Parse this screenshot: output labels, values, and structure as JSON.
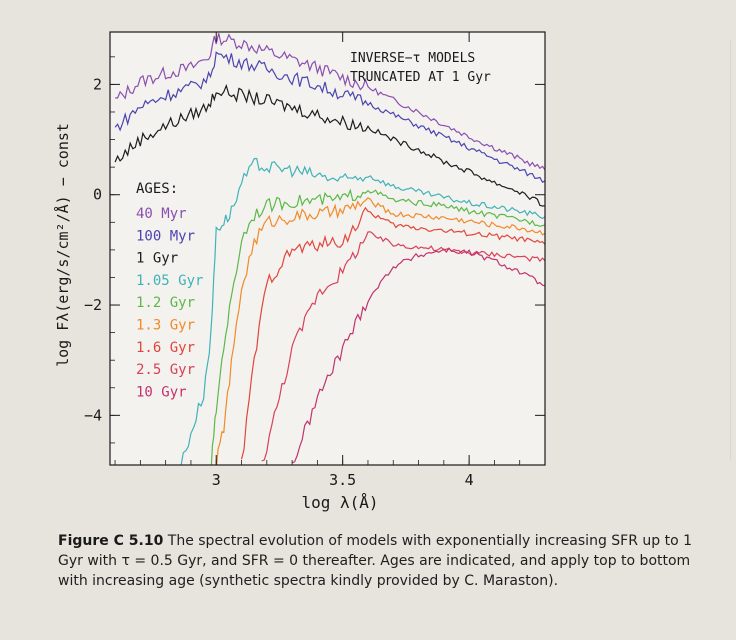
{
  "chart_data": {
    "type": "line",
    "title": "INVERSE−τ MODELS",
    "subtitle": "TRUNCATED AT 1 Gyr",
    "xlabel": "log λ(Å)",
    "ylabel": "log Fλ(erg/s/cm²/Å) − const",
    "xlim": [
      2.58,
      4.3
    ],
    "ylim": [
      -4.9,
      2.95
    ],
    "x_ticks": [
      {
        "value": 3,
        "label": "3"
      },
      {
        "value": 3.5,
        "label": "3.5"
      },
      {
        "value": 4,
        "label": "4"
      }
    ],
    "y_ticks": [
      {
        "value": 2,
        "label": "2"
      },
      {
        "value": 0,
        "label": "0"
      },
      {
        "value": -2,
        "label": "−2"
      },
      {
        "value": -4,
        "label": "−4"
      }
    ],
    "legend_title": "AGES:",
    "legend_position": "left",
    "series": [
      {
        "name": "40 Myr",
        "color": "#8a4fb0",
        "points": [
          [
            2.6,
            1.7
          ],
          [
            2.7,
            2.05
          ],
          [
            2.8,
            2.2
          ],
          [
            2.9,
            2.3
          ],
          [
            2.97,
            2.5
          ],
          [
            3.0,
            2.85
          ],
          [
            3.1,
            2.75
          ],
          [
            3.2,
            2.6
          ],
          [
            3.3,
            2.45
          ],
          [
            3.4,
            2.3
          ],
          [
            3.5,
            2.12
          ],
          [
            3.6,
            1.95
          ],
          [
            3.7,
            1.72
          ],
          [
            3.8,
            1.5
          ],
          [
            3.9,
            1.27
          ],
          [
            4.0,
            1.05
          ],
          [
            4.1,
            0.85
          ],
          [
            4.2,
            0.65
          ],
          [
            4.3,
            0.45
          ]
        ]
      },
      {
        "name": "100 Myr",
        "color": "#4a45b0",
        "points": [
          [
            2.6,
            1.2
          ],
          [
            2.7,
            1.6
          ],
          [
            2.8,
            1.8
          ],
          [
            2.9,
            1.95
          ],
          [
            2.97,
            2.1
          ],
          [
            3.0,
            2.55
          ],
          [
            3.1,
            2.4
          ],
          [
            3.2,
            2.28
          ],
          [
            3.3,
            2.12
          ],
          [
            3.4,
            1.98
          ],
          [
            3.5,
            1.82
          ],
          [
            3.6,
            1.66
          ],
          [
            3.7,
            1.45
          ],
          [
            3.8,
            1.25
          ],
          [
            3.9,
            1.05
          ],
          [
            4.0,
            0.85
          ],
          [
            4.1,
            0.65
          ],
          [
            4.2,
            0.45
          ],
          [
            4.3,
            0.25
          ]
        ]
      },
      {
        "name": "1 Gyr",
        "color": "#1d1d1d",
        "points": [
          [
            2.6,
            0.6
          ],
          [
            2.7,
            1.0
          ],
          [
            2.8,
            1.25
          ],
          [
            2.9,
            1.45
          ],
          [
            2.97,
            1.6
          ],
          [
            3.0,
            1.9
          ],
          [
            3.1,
            1.8
          ],
          [
            3.2,
            1.7
          ],
          [
            3.3,
            1.58
          ],
          [
            3.4,
            1.45
          ],
          [
            3.5,
            1.32
          ],
          [
            3.6,
            1.22
          ],
          [
            3.7,
            1.0
          ],
          [
            3.8,
            0.82
          ],
          [
            3.9,
            0.6
          ],
          [
            4.0,
            0.42
          ],
          [
            4.1,
            0.22
          ],
          [
            4.2,
            0.05
          ],
          [
            4.3,
            -0.2
          ]
        ]
      },
      {
        "name": "1.05 Gyr",
        "color": "#3fb3b8",
        "points": [
          [
            2.86,
            -4.9
          ],
          [
            2.95,
            -3.6
          ],
          [
            2.98,
            -2.5
          ],
          [
            3.0,
            -0.6
          ],
          [
            3.03,
            -0.5
          ],
          [
            3.06,
            -0.3
          ],
          [
            3.1,
            0.2
          ],
          [
            3.15,
            0.55
          ],
          [
            3.2,
            0.5
          ],
          [
            3.3,
            0.45
          ],
          [
            3.4,
            0.35
          ],
          [
            3.5,
            0.25
          ],
          [
            3.6,
            0.35
          ],
          [
            3.7,
            0.15
          ],
          [
            3.8,
            0.05
          ],
          [
            3.9,
            -0.05
          ],
          [
            4.0,
            -0.15
          ],
          [
            4.1,
            -0.22
          ],
          [
            4.2,
            -0.3
          ],
          [
            4.3,
            -0.4
          ]
        ]
      },
      {
        "name": "1.2 Gyr",
        "color": "#5cb84a",
        "points": [
          [
            2.98,
            -4.9
          ],
          [
            3.0,
            -3.9
          ],
          [
            3.03,
            -2.7
          ],
          [
            3.06,
            -1.9
          ],
          [
            3.1,
            -0.8
          ],
          [
            3.15,
            -0.35
          ],
          [
            3.2,
            -0.2
          ],
          [
            3.3,
            -0.12
          ],
          [
            3.4,
            -0.1
          ],
          [
            3.5,
            -0.08
          ],
          [
            3.6,
            0.1
          ],
          [
            3.7,
            -0.1
          ],
          [
            3.8,
            -0.15
          ],
          [
            3.9,
            -0.2
          ],
          [
            4.0,
            -0.3
          ],
          [
            4.1,
            -0.38
          ],
          [
            4.2,
            -0.45
          ],
          [
            4.3,
            -0.55
          ]
        ]
      },
      {
        "name": "1.3 Gyr",
        "color": "#f08a2a",
        "points": [
          [
            3.0,
            -4.9
          ],
          [
            3.03,
            -4.2
          ],
          [
            3.06,
            -3.1
          ],
          [
            3.1,
            -1.7
          ],
          [
            3.15,
            -0.85
          ],
          [
            3.2,
            -0.5
          ],
          [
            3.3,
            -0.4
          ],
          [
            3.4,
            -0.35
          ],
          [
            3.5,
            -0.3
          ],
          [
            3.6,
            -0.1
          ],
          [
            3.7,
            -0.35
          ],
          [
            3.8,
            -0.38
          ],
          [
            3.9,
            -0.42
          ],
          [
            4.0,
            -0.48
          ],
          [
            4.1,
            -0.55
          ],
          [
            4.2,
            -0.6
          ],
          [
            4.3,
            -0.7
          ]
        ]
      },
      {
        "name": "1.6 Gyr",
        "color": "#e2453a",
        "points": [
          [
            3.1,
            -4.9
          ],
          [
            3.15,
            -3.0
          ],
          [
            3.2,
            -1.6
          ],
          [
            3.3,
            -1.0
          ],
          [
            3.4,
            -0.9
          ],
          [
            3.5,
            -0.85
          ],
          [
            3.6,
            -0.3
          ],
          [
            3.7,
            -0.55
          ],
          [
            3.8,
            -0.6
          ],
          [
            3.9,
            -0.65
          ],
          [
            4.0,
            -0.7
          ],
          [
            4.1,
            -0.75
          ],
          [
            4.2,
            -0.8
          ],
          [
            4.3,
            -0.9
          ]
        ]
      },
      {
        "name": "2.5 Gyr",
        "color": "#d9405a",
        "points": [
          [
            3.18,
            -4.9
          ],
          [
            3.3,
            -2.8
          ],
          [
            3.4,
            -1.8
          ],
          [
            3.5,
            -1.4
          ],
          [
            3.6,
            -0.7
          ],
          [
            3.7,
            -0.9
          ],
          [
            3.8,
            -0.95
          ],
          [
            3.9,
            -1.0
          ],
          [
            4.0,
            -1.05
          ],
          [
            4.1,
            -1.08
          ],
          [
            4.2,
            -1.12
          ],
          [
            4.3,
            -1.2
          ]
        ]
      },
      {
        "name": "10 Gyr",
        "color": "#c2326f",
        "points": [
          [
            3.3,
            -4.9
          ],
          [
            3.4,
            -3.7
          ],
          [
            3.5,
            -2.8
          ],
          [
            3.6,
            -1.9
          ],
          [
            3.7,
            -1.3
          ],
          [
            3.8,
            -1.1
          ],
          [
            3.9,
            -1.0
          ],
          [
            4.0,
            -1.05
          ],
          [
            4.1,
            -1.2
          ],
          [
            4.2,
            -1.4
          ],
          [
            4.3,
            -1.65
          ]
        ]
      }
    ]
  },
  "caption": {
    "figure_number": "Figure C 5.10",
    "text": " The spectral evolution of models with exponentially increasing SFR up to 1 Gyr with τ = 0.5 Gyr, and SFR = 0 thereafter. Ages are indicated, and apply top to bottom with increasing age (synthetic spectra kindly provided by C. Maraston)."
  }
}
